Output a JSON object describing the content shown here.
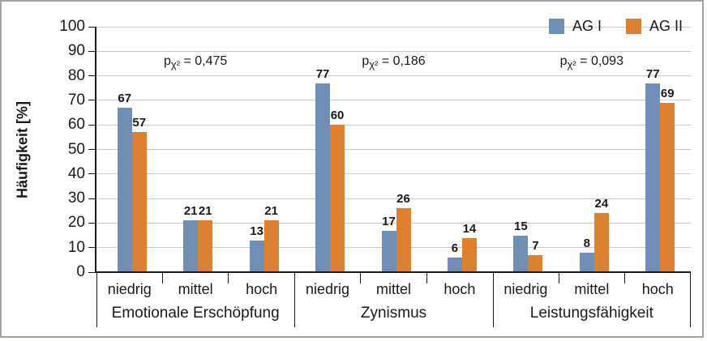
{
  "figure": {
    "background": "#ffffff",
    "border_color": "#a3a39d"
  },
  "colors": {
    "series_ag_i": "#718eb4",
    "series_ag_ii": "#dd802f",
    "gridline": "#c8c8c8",
    "axis": "#1a1a1a",
    "text": "#1a1a1a"
  },
  "chart_data": {
    "type": "bar",
    "title": "",
    "xlabel": "",
    "ylabel": "Häufigkeit [%]",
    "ylim": [
      0,
      100
    ],
    "yticks": [
      0,
      10,
      20,
      30,
      40,
      50,
      60,
      70,
      80,
      90,
      100
    ],
    "grid": true,
    "legend_position": "top-right",
    "group_labels": [
      "Emotionale Erschöpfung",
      "Zynismus",
      "Leistungsfähigkeit"
    ],
    "categories": [
      "niedrig",
      "mittel",
      "hoch"
    ],
    "series": [
      {
        "name": "AG I",
        "color": "#718eb4",
        "values_by_group": [
          [
            67,
            21,
            13
          ],
          [
            77,
            17,
            6
          ],
          [
            15,
            8,
            77
          ]
        ]
      },
      {
        "name": "AG II",
        "color": "#dd802f",
        "values_by_group": [
          [
            57,
            21,
            21
          ],
          [
            60,
            26,
            14
          ],
          [
            7,
            24,
            69
          ]
        ]
      }
    ],
    "annotations": [
      {
        "prefix": "p",
        "sub": "χ²",
        "rest": "= 0,475"
      },
      {
        "prefix": "p",
        "sub": "χ²",
        "rest": "= 0,186"
      },
      {
        "prefix": "p",
        "sub": "χ²",
        "rest": "= 0,093"
      }
    ]
  }
}
